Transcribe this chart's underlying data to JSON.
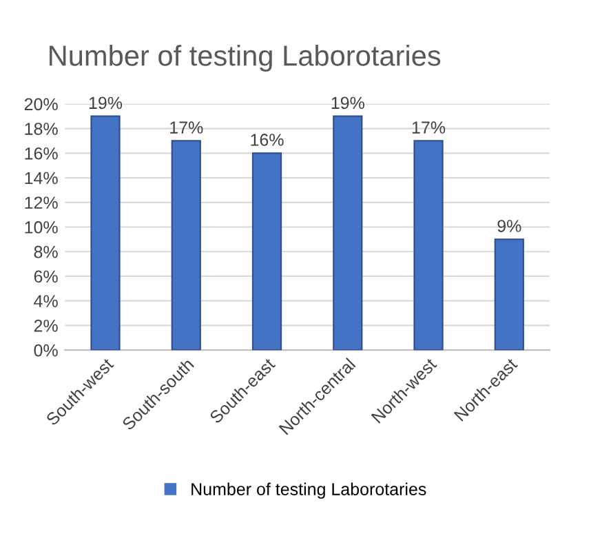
{
  "chart_data": {
    "type": "bar",
    "title": "Number of testing Laborotaries",
    "categories": [
      "South-west",
      "South-south",
      "South-east",
      "North-central",
      "North-west",
      "North-east"
    ],
    "series": [
      {
        "name": "Number of testing Laborotaries",
        "color": "#4472c4",
        "values": [
          19,
          17,
          16,
          19,
          17,
          9
        ],
        "value_labels": [
          "19%",
          "17%",
          "16%",
          "19%",
          "17%",
          "9%"
        ]
      }
    ],
    "ylim": [
      0,
      20
    ],
    "yticks": [
      {
        "value": 0,
        "label": "0%"
      },
      {
        "value": 2,
        "label": "2%"
      },
      {
        "value": 4,
        "label": "4%"
      },
      {
        "value": 6,
        "label": "6%"
      },
      {
        "value": 8,
        "label": "8%"
      },
      {
        "value": 10,
        "label": "10%"
      },
      {
        "value": 12,
        "label": "12%"
      },
      {
        "value": 14,
        "label": "14%"
      },
      {
        "value": 16,
        "label": "16%"
      },
      {
        "value": 18,
        "label": "18%"
      },
      {
        "value": 20,
        "label": "20%"
      }
    ],
    "grid": "y",
    "legend": "bottom"
  }
}
